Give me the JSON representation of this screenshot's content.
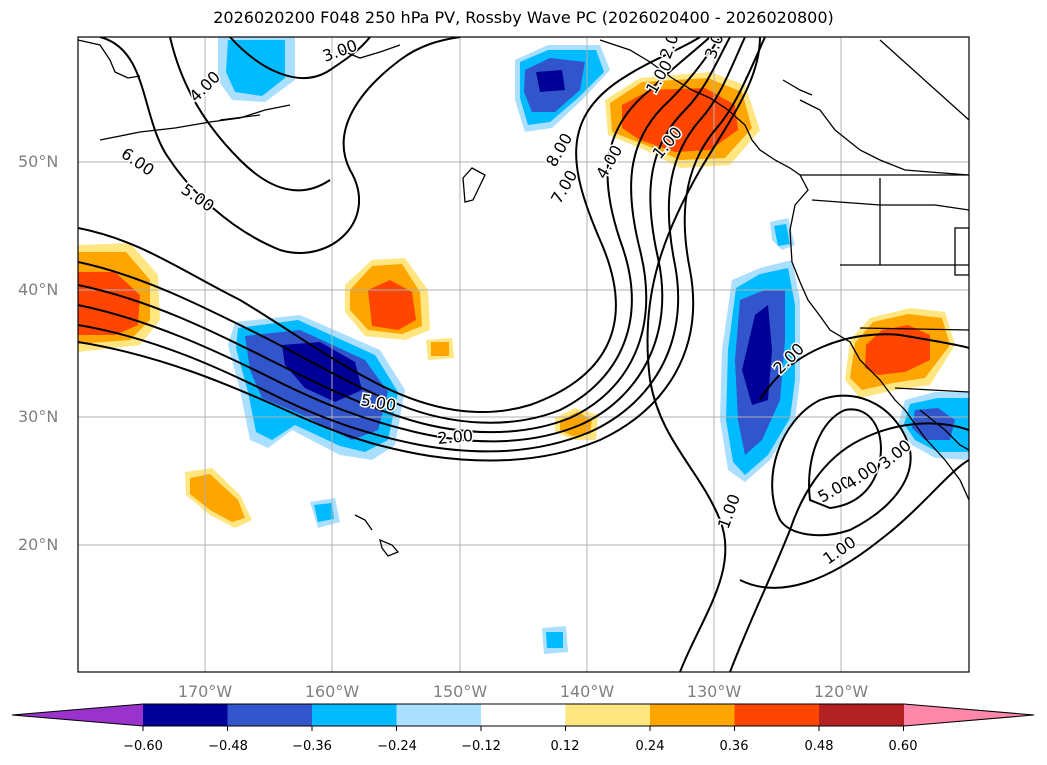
{
  "title": "2026020200 F048 250 hPa PV, Rossby Wave PC (2026020400 - 2026020800)",
  "lat_labels": [
    "50°N",
    "40°N",
    "30°N",
    "20°N"
  ],
  "lon_labels": [
    "170°W",
    "160°W",
    "150°W",
    "140°W",
    "130°W",
    "120°W"
  ],
  "colorbar": {
    "ticks": [
      "−0.60",
      "−0.48",
      "−0.36",
      "−0.24",
      "−0.12",
      "0.12",
      "0.24",
      "0.36",
      "0.48",
      "0.60"
    ],
    "colors": [
      "#9933cc",
      "#000099",
      "#3355cc",
      "#00bbff",
      "#aadfff",
      "#ffffff",
      "#ffe680",
      "#ffa500",
      "#ff4500",
      "#b22222",
      "#ff88aa"
    ]
  },
  "contour_labels": [
    "3.00",
    "4.00",
    "6.00",
    "5.00",
    "8.00",
    "7.00",
    "4.00",
    "3.00",
    "2.00",
    "1.00",
    "5.00",
    "2.00",
    "1.00",
    "2.00",
    "5.00",
    "4.00",
    "3.00",
    "1.00",
    "1.00"
  ]
}
